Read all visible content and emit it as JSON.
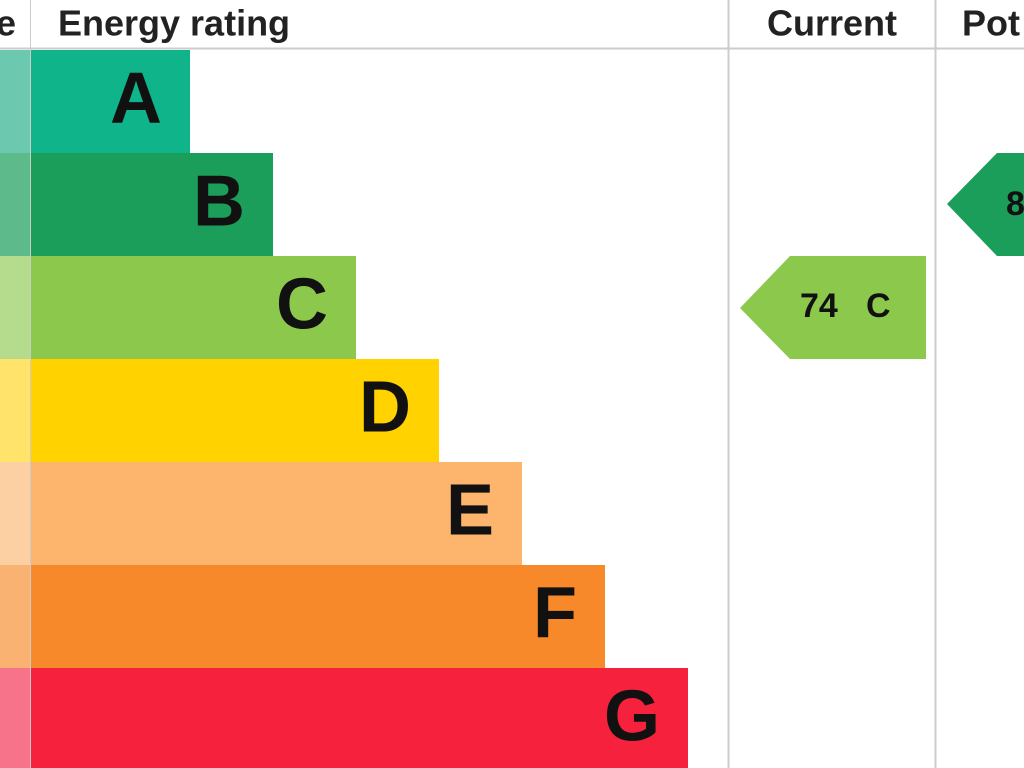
{
  "header": {
    "score": "e",
    "rating": "Energy rating",
    "current": "Current",
    "potential": "Pot"
  },
  "bands": [
    "A",
    "B",
    "C",
    "D",
    "E",
    "F",
    "G"
  ],
  "current": {
    "score": 74,
    "band": "C"
  },
  "potential": {
    "score": "8"
  }
}
